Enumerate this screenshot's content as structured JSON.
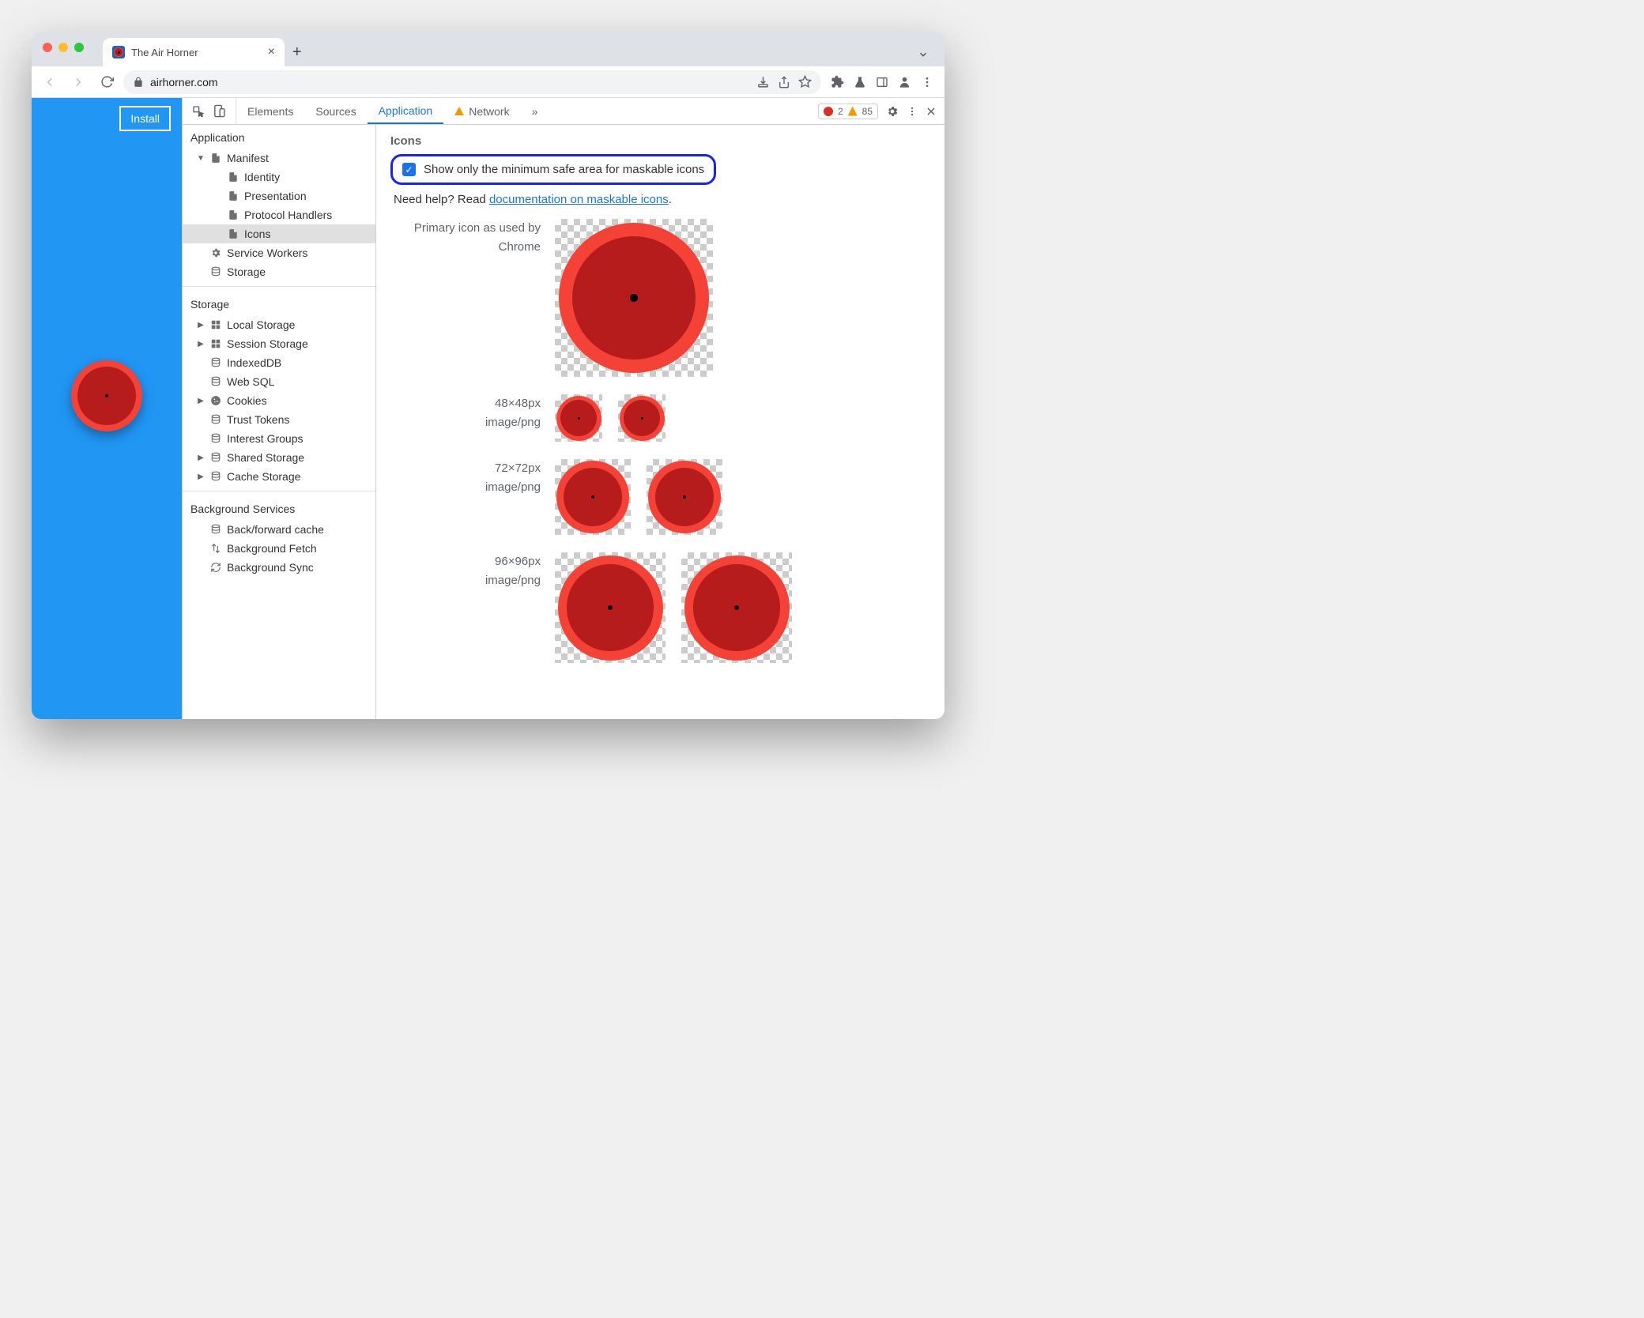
{
  "colors": {
    "page_bg": "#2196f3",
    "horn_outer": "#f44336",
    "horn_inner": "#b71c1c",
    "horn_dot": "#000000",
    "highlight_border": "#1a21ff",
    "link": "#1a73e8",
    "traffic_red": "#ff5f57",
    "traffic_yellow": "#febc2e",
    "traffic_green": "#28c840",
    "error_red": "#d93025",
    "warn_yellow": "#f29900"
  },
  "browser": {
    "tab_title": "The Air Horner",
    "url_display": "airhorner.com",
    "toolbar_icons": [
      "install-icon",
      "share-icon",
      "star-icon"
    ],
    "ext_icons": [
      "puzzle-icon",
      "flask-icon",
      "panel-icon",
      "person-icon",
      "kebab-icon"
    ]
  },
  "page": {
    "install_label": "Install"
  },
  "devtools": {
    "tabs": [
      {
        "label": "Elements",
        "active": false
      },
      {
        "label": "Sources",
        "active": false
      },
      {
        "label": "Application",
        "active": true
      },
      {
        "label": "Network",
        "active": false,
        "warn": true
      }
    ],
    "errors": 2,
    "warnings": 85
  },
  "sidebar": {
    "sections": [
      {
        "title": "Application",
        "items": [
          {
            "label": "Manifest",
            "icon": "file",
            "caret": "down",
            "children": [
              {
                "label": "Identity",
                "icon": "file"
              },
              {
                "label": "Presentation",
                "icon": "file"
              },
              {
                "label": "Protocol Handlers",
                "icon": "file"
              },
              {
                "label": "Icons",
                "icon": "file",
                "selected": true
              }
            ]
          },
          {
            "label": "Service Workers",
            "icon": "gear"
          },
          {
            "label": "Storage",
            "icon": "db"
          }
        ]
      },
      {
        "title": "Storage",
        "items": [
          {
            "label": "Local Storage",
            "icon": "grid",
            "caret": "right"
          },
          {
            "label": "Session Storage",
            "icon": "grid",
            "caret": "right"
          },
          {
            "label": "IndexedDB",
            "icon": "db"
          },
          {
            "label": "Web SQL",
            "icon": "db"
          },
          {
            "label": "Cookies",
            "icon": "cookie",
            "caret": "right"
          },
          {
            "label": "Trust Tokens",
            "icon": "db"
          },
          {
            "label": "Interest Groups",
            "icon": "db"
          },
          {
            "label": "Shared Storage",
            "icon": "db",
            "caret": "right"
          },
          {
            "label": "Cache Storage",
            "icon": "db",
            "caret": "right"
          }
        ]
      },
      {
        "title": "Background Services",
        "items": [
          {
            "label": "Back/forward cache",
            "icon": "db"
          },
          {
            "label": "Background Fetch",
            "icon": "updown"
          },
          {
            "label": "Background Sync",
            "icon": "sync"
          }
        ]
      }
    ]
  },
  "main": {
    "heading": "Icons",
    "checkbox_label": "Show only the minimum safe area for maskable icons",
    "checkbox_checked": true,
    "help_prefix": "Need help? Read ",
    "help_link_text": "documentation on maskable icons",
    "help_suffix": ".",
    "rows": [
      {
        "line1": "Primary icon as used by",
        "line2": "Chrome",
        "size": 200,
        "count": 1
      },
      {
        "line1": "48×48px",
        "line2": "image/png",
        "size": 60,
        "count": 2
      },
      {
        "line1": "72×72px",
        "line2": "image/png",
        "size": 96,
        "count": 2
      },
      {
        "line1": "96×96px",
        "line2": "image/png",
        "size": 140,
        "count": 2
      }
    ]
  }
}
